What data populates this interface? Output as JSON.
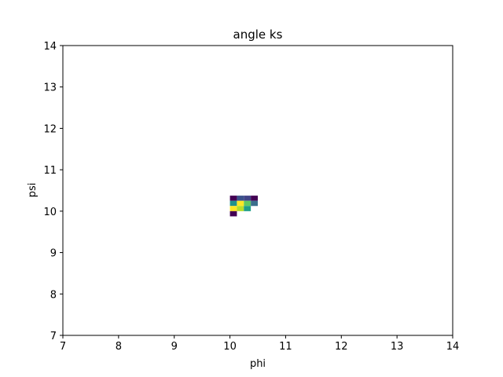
{
  "chart_data": {
    "type": "heatmap",
    "title": "angle ks",
    "xlabel": "phi",
    "ylabel": "psi",
    "xlim": [
      7,
      14
    ],
    "ylim": [
      7,
      14
    ],
    "xticks": [
      "7",
      "8",
      "9",
      "10",
      "11",
      "12",
      "13",
      "14"
    ],
    "yticks": [
      "7",
      "8",
      "9",
      "10",
      "11",
      "12",
      "13",
      "14"
    ],
    "bin_size": 0.125,
    "grid": false,
    "colormap": "viridis",
    "cells": [
      {
        "phi": 10.0,
        "psi": 10.25,
        "value": 0.05,
        "color": "#440154"
      },
      {
        "phi": 10.125,
        "psi": 10.25,
        "value": 0.35,
        "color": "#3b528b"
      },
      {
        "phi": 10.25,
        "psi": 10.25,
        "value": 0.3,
        "color": "#414487"
      },
      {
        "phi": 10.375,
        "psi": 10.25,
        "value": 0.05,
        "color": "#440154"
      },
      {
        "phi": 10.0,
        "psi": 10.125,
        "value": 0.5,
        "color": "#21918c"
      },
      {
        "phi": 10.125,
        "psi": 10.125,
        "value": 0.95,
        "color": "#fde725"
      },
      {
        "phi": 10.25,
        "psi": 10.125,
        "value": 0.7,
        "color": "#5ec962"
      },
      {
        "phi": 10.375,
        "psi": 10.125,
        "value": 0.4,
        "color": "#3b6e8c"
      },
      {
        "phi": 10.0,
        "psi": 10.0,
        "value": 1.0,
        "color": "#fde725"
      },
      {
        "phi": 10.125,
        "psi": 10.0,
        "value": 0.85,
        "color": "#b5de2b"
      },
      {
        "phi": 10.25,
        "psi": 10.0,
        "value": 0.55,
        "color": "#1f9e89"
      },
      {
        "phi": 10.0,
        "psi": 9.875,
        "value": 0.05,
        "color": "#440154"
      }
    ]
  }
}
